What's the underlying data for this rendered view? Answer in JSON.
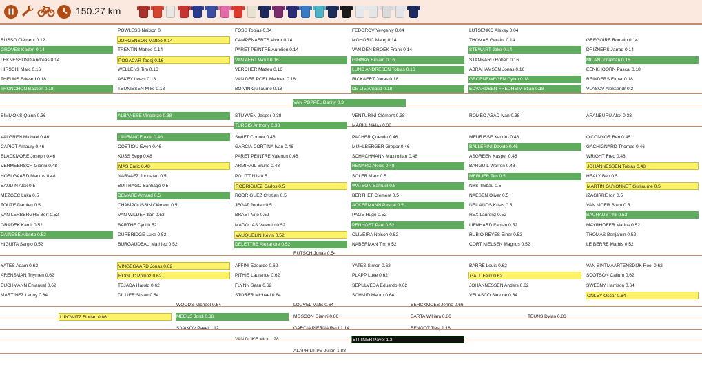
{
  "toolbar": {
    "distance": "150.27 km",
    "icons": [
      "pause-icon",
      "wrench-icon",
      "bike-icon",
      "clock-icon"
    ],
    "accent": "#b24c16"
  },
  "jerseys": [
    "#a8332b",
    "#d2442e",
    "#e9e6e4",
    "#c5342f",
    "#2a3a8c",
    "#3b4ea0",
    "#e26aa6",
    "#d93a2b",
    "#e8e2d0",
    "#1e2b5a",
    "#7a2d6a",
    "#2a2d74",
    "#3a7ac2",
    "#4fb3c7",
    "#1b2f58",
    "#1a1a1a",
    "#e7e8ea",
    "#e4e6e8",
    "#d9d9d9",
    "#e2e4e8",
    "#1c2a5e"
  ],
  "colors": {
    "green": "#5fac5f",
    "yellow": "#fdf36a",
    "separator": "#c8896a",
    "topbar": "#fbe8df"
  },
  "riders": [
    {
      "name": "POWLESS Neilson 0",
      "c": 1,
      "r": 0
    },
    {
      "name": "FOSS Tobias 0.04",
      "c": 2,
      "r": 0
    },
    {
      "name": "FEDOROV Yevgeniy 0.04",
      "c": 3,
      "r": 0
    },
    {
      "name": "LUTSENKO Alexey 0.04",
      "c": 4,
      "r": 0
    },
    {
      "name": "RUSSO Clément 0.12",
      "c": 0,
      "r": 1
    },
    {
      "name": "JORGENSON Matteo 0.14",
      "c": 1,
      "r": 1,
      "h": "yellow"
    },
    {
      "name": "CAMPENAERTS Victor 0.14",
      "c": 2,
      "r": 1
    },
    {
      "name": "MOHORIC Matej 0.14",
      "c": 3,
      "r": 1
    },
    {
      "name": "THOMAS Geraint 0.14",
      "c": 4,
      "r": 1
    },
    {
      "name": "GREGOIRE Romain 0.14",
      "c": 5,
      "r": 1
    },
    {
      "name": "GROVES Kaden 0.14",
      "c": 0,
      "r": 2,
      "h": "green"
    },
    {
      "name": "TRENTIN Matteo 0.14",
      "c": 1,
      "r": 2
    },
    {
      "name": "PARET PEINTRE Aurélien 0.14",
      "c": 2,
      "r": 2
    },
    {
      "name": "VAN DEN BROEK Frank 0.14",
      "c": 3,
      "r": 2
    },
    {
      "name": "STEWART Jake 0.14",
      "c": 4,
      "r": 2,
      "h": "green"
    },
    {
      "name": "DRIZNERS Jarrad 0.14",
      "c": 5,
      "r": 2
    },
    {
      "name": "LEKNESSUND Andreas 0.14",
      "c": 0,
      "r": 3
    },
    {
      "name": "POGACAR Tadej 0.16",
      "c": 1,
      "r": 3,
      "h": "yellow"
    },
    {
      "name": "VAN AERT Wout 0.16",
      "c": 2,
      "r": 3,
      "h": "green"
    },
    {
      "name": "GIRMAY Biniam 0.16",
      "c": 3,
      "r": 3,
      "h": "green"
    },
    {
      "name": "STANNARD Robert 0.16",
      "c": 4,
      "r": 3
    },
    {
      "name": "MILAN Jonathan 0.16",
      "c": 5,
      "r": 3,
      "h": "green"
    },
    {
      "name": "HIRSCHI Marc 0.16",
      "c": 0,
      "r": 4
    },
    {
      "name": "WELLENS Tim 0.16",
      "c": 1,
      "r": 4
    },
    {
      "name": "VERCHER Matteo 0.16",
      "c": 2,
      "r": 4
    },
    {
      "name": "LUND ANDRESEN Tobias 0.16",
      "c": 3,
      "r": 4,
      "h": "green"
    },
    {
      "name": "ABRAHAMSEN Jonas 0.16",
      "c": 4,
      "r": 4
    },
    {
      "name": "EENKHOORN Pascal 0.18",
      "c": 5,
      "r": 4
    },
    {
      "name": "THEUNS Edward 0.18",
      "c": 0,
      "r": 5
    },
    {
      "name": "ASKEY Lewis 0.18",
      "c": 1,
      "r": 5
    },
    {
      "name": "VAN DER POEL Mathieu 0.18",
      "c": 2,
      "r": 5
    },
    {
      "name": "RICKAERT Jonas 0.18",
      "c": 3,
      "r": 5
    },
    {
      "name": "GROENEWEGEN Dylan 0.18",
      "c": 4,
      "r": 5,
      "h": "green"
    },
    {
      "name": "REINDERS Elmar 0.18",
      "c": 5,
      "r": 5
    },
    {
      "name": "TRONCHON Bastien 0.18",
      "c": 0,
      "r": 6,
      "h": "green"
    },
    {
      "name": "TEUNISSEN Mike 0.18",
      "c": 1,
      "r": 6
    },
    {
      "name": "BOIVIN Guillaume 0.18",
      "c": 2,
      "r": 6
    },
    {
      "name": "DE LIE Arnaud 0.18",
      "c": 3,
      "r": 6,
      "h": "green"
    },
    {
      "name": "EDVARDSEN-FREDHEIM Stian 0.18",
      "c": 4,
      "r": 6,
      "h": "green"
    },
    {
      "name": "VLASOV Aleksandr 0.2",
      "c": 5,
      "r": 6
    },
    {
      "name": "VAN POPPEL Danny 0.3",
      "c": 2.5,
      "r": 7.4,
      "h": "green"
    },
    {
      "name": "SIMMONS Quinn 0.36",
      "c": 0,
      "r": 8.7
    },
    {
      "name": "ALBANESE Vincenzo 0.38",
      "c": 1,
      "r": 8.7,
      "h": "green"
    },
    {
      "name": "STUYVEN Jasper 0.38",
      "c": 2,
      "r": 8.7
    },
    {
      "name": "VENTURINI Clément 0.38",
      "c": 3,
      "r": 8.7
    },
    {
      "name": "ROMEO ABAD Ivan 0.38",
      "c": 4,
      "r": 8.7
    },
    {
      "name": "ARANBURU Alex 0.38",
      "c": 5,
      "r": 8.7
    },
    {
      "name": "TURGIS Anthony 0.38",
      "c": 2,
      "r": 9.7,
      "h": "green"
    },
    {
      "name": "MÄRKL Niklas 0.38",
      "c": 3,
      "r": 9.7
    },
    {
      "name": "VALGREN Michael 0.46",
      "c": 0,
      "r": 10.9
    },
    {
      "name": "LAURANCE Axel 0.46",
      "c": 1,
      "r": 10.9,
      "h": "green"
    },
    {
      "name": "SWIFT Connor 0.46",
      "c": 2,
      "r": 10.9
    },
    {
      "name": "PACHER Quentin 0.46",
      "c": 3,
      "r": 10.9
    },
    {
      "name": "MEURISSE Xandro 0.46",
      "c": 4,
      "r": 10.9
    },
    {
      "name": "O'CONNOR Ben 0.46",
      "c": 5,
      "r": 10.9
    },
    {
      "name": "CAPIOT Amaury 0.46",
      "c": 0,
      "r": 11.9
    },
    {
      "name": "COSTIOU Ewen 0.46",
      "c": 1,
      "r": 11.9
    },
    {
      "name": "GARCIA CORTINA Ivan 0.46",
      "c": 2,
      "r": 11.9
    },
    {
      "name": "MÜHLBERGER Gregor 0.46",
      "c": 3,
      "r": 11.9
    },
    {
      "name": "BALLERINI Davide 0.46",
      "c": 4,
      "r": 11.9,
      "h": "green"
    },
    {
      "name": "GACHIGNARD Thomas 0.46",
      "c": 5,
      "r": 11.9
    },
    {
      "name": "BLACKMORE Joseph 0.46",
      "c": 0,
      "r": 12.9
    },
    {
      "name": "KUSS Sepp 0.48",
      "c": 1,
      "r": 12.9
    },
    {
      "name": "PARET PEINTRE Valentin 0.48",
      "c": 2,
      "r": 12.9
    },
    {
      "name": "SCHACHMANN Maximilian 0.48",
      "c": 3,
      "r": 12.9
    },
    {
      "name": "ASGREEN Kasper 0.48",
      "c": 4,
      "r": 12.9
    },
    {
      "name": "WRIGHT Fred 0.48",
      "c": 5,
      "r": 12.9
    },
    {
      "name": "VERMEERSCH Gianni 0.48",
      "c": 0,
      "r": 13.9
    },
    {
      "name": "MAS Enric 0.48",
      "c": 1,
      "r": 13.9,
      "h": "yellow"
    },
    {
      "name": "ARMIRAIL Bruno 0.48",
      "c": 2,
      "r": 13.9
    },
    {
      "name": "RENARD Alexis 0.48",
      "c": 3,
      "r": 13.9,
      "h": "green"
    },
    {
      "name": "BARGUIL Warren 0.48",
      "c": 4,
      "r": 13.9
    },
    {
      "name": "JOHANNESSEN Tobias 0.48",
      "c": 5,
      "r": 13.9,
      "h": "yellow"
    },
    {
      "name": "HOELGAARD Markus 0.48",
      "c": 0,
      "r": 14.9
    },
    {
      "name": "NARVAEZ Jhonatan 0.5",
      "c": 1,
      "r": 14.9
    },
    {
      "name": "POLITT Nils 0.5",
      "c": 2,
      "r": 14.9
    },
    {
      "name": "SOLER Marc 0.5",
      "c": 3,
      "r": 14.9
    },
    {
      "name": "MERLIER Tim 0.5",
      "c": 4,
      "r": 14.9,
      "h": "green"
    },
    {
      "name": "HEALY Ben 0.5",
      "c": 5,
      "r": 14.9
    },
    {
      "name": "BAUDIN Alex 0.5",
      "c": 0,
      "r": 15.9
    },
    {
      "name": "BUITRAGO Santiago 0.5",
      "c": 1,
      "r": 15.9
    },
    {
      "name": "RODRIGUEZ Carlos 0.5",
      "c": 2,
      "r": 15.9,
      "h": "yellow"
    },
    {
      "name": "WATSON Samuel 0.5",
      "c": 3,
      "r": 15.9,
      "h": "green"
    },
    {
      "name": "NYS Thibau 0.5",
      "c": 4,
      "r": 15.9
    },
    {
      "name": "MARTIN GUYONNET Guillaume 0.5",
      "c": 5,
      "r": 15.9,
      "h": "yellow"
    },
    {
      "name": "MEZGEC Luka 0.5",
      "c": 0,
      "r": 16.9
    },
    {
      "name": "DEMARE Arnaud 0.5",
      "c": 1,
      "r": 16.9,
      "h": "green"
    },
    {
      "name": "RODRIGUEZ Cristian 0.5",
      "c": 2,
      "r": 16.9
    },
    {
      "name": "BERTHET Clément 0.5",
      "c": 3,
      "r": 16.9
    },
    {
      "name": "NAESEN Oliver 0.5",
      "c": 4,
      "r": 16.9
    },
    {
      "name": "IZAGIRRE Ion 0.5",
      "c": 5,
      "r": 16.9
    },
    {
      "name": "TOUZE Damien 0.5",
      "c": 0,
      "r": 17.9
    },
    {
      "name": "CHAMPOUSSIN Clément 0.5",
      "c": 1,
      "r": 17.9
    },
    {
      "name": "JEGAT Jordan 0.5",
      "c": 2,
      "r": 17.9
    },
    {
      "name": "ACKERMANN Pascal 0.5",
      "c": 3,
      "r": 17.9,
      "h": "green"
    },
    {
      "name": "NEILANDS Krists 0.5",
      "c": 4,
      "r": 17.9
    },
    {
      "name": "VAN MOER Brent 0.5",
      "c": 5,
      "r": 17.9
    },
    {
      "name": "VAN LERBERGHE Bert 0.52",
      "c": 0,
      "r": 18.9
    },
    {
      "name": "VAN WILDER Ilan 0.52",
      "c": 1,
      "r": 18.9
    },
    {
      "name": "BRAET Vito 0.52",
      "c": 2,
      "r": 18.9
    },
    {
      "name": "PAGE Hugo 0.52",
      "c": 3,
      "r": 18.9
    },
    {
      "name": "REX Laurenz 0.52",
      "c": 4,
      "r": 18.9
    },
    {
      "name": "BAUHAUS Phil 0.52",
      "c": 5,
      "r": 18.9,
      "h": "green"
    },
    {
      "name": "GRADEK Kamil 0.52",
      "c": 0,
      "r": 19.9
    },
    {
      "name": "BARTHE Cyril 0.52",
      "c": 1,
      "r": 19.9
    },
    {
      "name": "MADOUAS Valentin 0.52",
      "c": 2,
      "r": 19.9
    },
    {
      "name": "PENHOET Paul 0.52",
      "c": 3,
      "r": 19.9,
      "h": "green"
    },
    {
      "name": "LIENHARD Fabian 0.52",
      "c": 4,
      "r": 19.9
    },
    {
      "name": "MAYRHOFER Marius 0.52",
      "c": 5,
      "r": 19.9
    },
    {
      "name": "DAINESE Alberto 0.52",
      "c": 0,
      "r": 20.9,
      "h": "green"
    },
    {
      "name": "DURBRIDGE Luke 0.52",
      "c": 1,
      "r": 20.9
    },
    {
      "name": "VAUQUELIN Kévin 0.52",
      "c": 2,
      "r": 20.9,
      "h": "yellow"
    },
    {
      "name": "OLIVEIRA Nelson 0.52",
      "c": 3,
      "r": 20.9
    },
    {
      "name": "RUBIO REYES Einer 0.52",
      "c": 4,
      "r": 20.9
    },
    {
      "name": "THOMAS Benjamin 0.52",
      "c": 5,
      "r": 20.9
    },
    {
      "name": "HIGUITA Sergio 0.52",
      "c": 0,
      "r": 21.9
    },
    {
      "name": "BURGAUDEAU Mathieu 0.52",
      "c": 1,
      "r": 21.9
    },
    {
      "name": "DELETTRE Alexandre 0.52",
      "c": 2,
      "r": 21.9,
      "h": "green"
    },
    {
      "name": "NABERMAN Tim 0.52",
      "c": 3,
      "r": 21.9
    },
    {
      "name": "CORT NIELSEN Magnus 0.52",
      "c": 4,
      "r": 21.9
    },
    {
      "name": "LE BERRE Mathis 0.52",
      "c": 5,
      "r": 21.9
    },
    {
      "name": "RUTSCH Jonas 0.54",
      "c": 2.5,
      "r": 22.8
    },
    {
      "name": "YATES Adam 0.62",
      "c": 0,
      "r": 24.1
    },
    {
      "name": "VINGEGAARD Jonas 0.62",
      "c": 1,
      "r": 24.1,
      "h": "yellow"
    },
    {
      "name": "AFFINI Edoardo 0.62",
      "c": 2,
      "r": 24.1
    },
    {
      "name": "YATES Simon 0.62",
      "c": 3,
      "r": 24.1
    },
    {
      "name": "BARRE Louis 0.62",
      "c": 4,
      "r": 24.1
    },
    {
      "name": "VAN SINTMAARTENSDIJK Roel 0.62",
      "c": 5,
      "r": 24.1
    },
    {
      "name": "ARENSMAN Thymen 0.62",
      "c": 0,
      "r": 25.1
    },
    {
      "name": "ROGLIC Primoz 0.62",
      "c": 1,
      "r": 25.1,
      "h": "yellow"
    },
    {
      "name": "PITHIE Laurence 0.62",
      "c": 2,
      "r": 25.1
    },
    {
      "name": "PLAPP Luke 0.62",
      "c": 3,
      "r": 25.1
    },
    {
      "name": "GALL Felix 0.62",
      "c": 4,
      "r": 25.1,
      "h": "yellow"
    },
    {
      "name": "SCOTSON Callum 0.62",
      "c": 5,
      "r": 25.1
    },
    {
      "name": "BUCHMANN Emanuel 0.62",
      "c": 0,
      "r": 26.1
    },
    {
      "name": "TEJADA Harold 0.62",
      "c": 1,
      "r": 26.1
    },
    {
      "name": "FLYNN Sean 0.62",
      "c": 2,
      "r": 26.1
    },
    {
      "name": "SEPULVEDA Eduardo 0.62",
      "c": 3,
      "r": 26.1
    },
    {
      "name": "JOHANNESSEN Anders 0.62",
      "c": 4,
      "r": 26.1
    },
    {
      "name": "SWEENY Harrison 0.64",
      "c": 5,
      "r": 26.1
    },
    {
      "name": "MARTINEZ Lenny 0.64",
      "c": 0,
      "r": 27.1
    },
    {
      "name": "DILLIER Silvan 0.64",
      "c": 1,
      "r": 27.1
    },
    {
      "name": "STORER Michael 0.64",
      "c": 2,
      "r": 27.1
    },
    {
      "name": "SCHMID Mauro 0.64",
      "c": 3,
      "r": 27.1
    },
    {
      "name": "VELASCO Simone 0.64",
      "c": 4,
      "r": 27.1
    },
    {
      "name": "ONLEY Oscar 0.64",
      "c": 5,
      "r": 27.1,
      "h": "yellow"
    },
    {
      "name": "WOODS Michael 0.64",
      "c": 1.5,
      "r": 28.1
    },
    {
      "name": "LOUVEL Matis 0.64",
      "c": 2.5,
      "r": 28.1
    },
    {
      "name": "BERCKMOES Jenno 0.66",
      "c": 3.5,
      "r": 28.1
    },
    {
      "name": "LIPOWITZ Florian 0.86",
      "c": 0.5,
      "r": 29.3,
      "h": "yellow"
    },
    {
      "name": "MEEUS Jordi 0.86",
      "c": 1.5,
      "r": 29.3,
      "h": "green"
    },
    {
      "name": "MOSCON Gianni 0.86",
      "c": 2.5,
      "r": 29.3
    },
    {
      "name": "BARTA William 0.86",
      "c": 3.5,
      "r": 29.3
    },
    {
      "name": "TEUNS Dylan 0.86",
      "c": 4.5,
      "r": 29.3
    },
    {
      "name": "SIVAKOV Pavel 1.12",
      "c": 1.5,
      "r": 30.5
    },
    {
      "name": "GARCIA PIERNA Raul 1.14",
      "c": 2.5,
      "r": 30.5
    },
    {
      "name": "BENOOT Tiesj 1.18",
      "c": 3.5,
      "r": 30.5
    },
    {
      "name": "VAN DIJKE Mick 1.28",
      "c": 2,
      "r": 31.6
    },
    {
      "name": "BITTNER Pavel 1.3",
      "c": 3,
      "r": 31.6,
      "h": "black"
    },
    {
      "name": "ALAPHILIPPE Julian 1.88",
      "c": 2.5,
      "r": 32.8
    }
  ],
  "separators": [
    6.9,
    8.1,
    10.3,
    23.5,
    28.7,
    29.9,
    31.1,
    32.2,
    33.5
  ]
}
